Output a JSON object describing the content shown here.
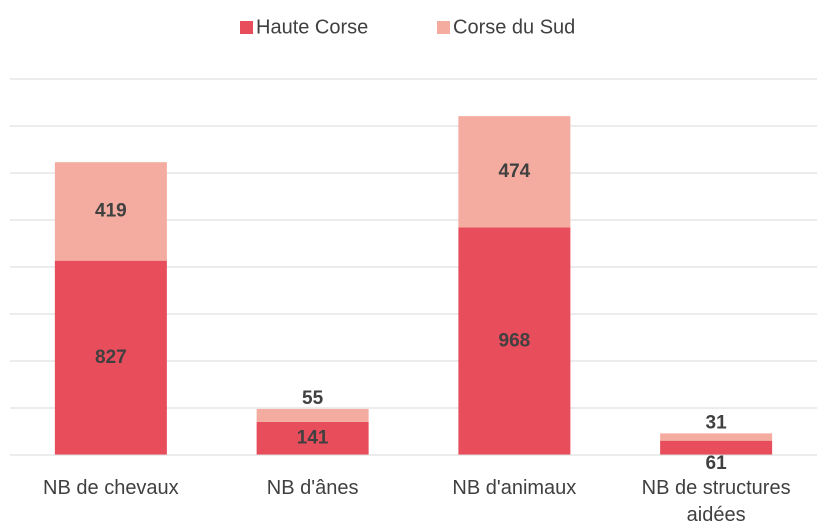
{
  "chart_data": {
    "type": "stacked_bar",
    "categories": [
      "NB de chevaux",
      "NB d'ânes",
      "NB d'animaux",
      "NB de structures aidées"
    ],
    "series": [
      {
        "name": "Haute Corse",
        "color": "#e84d5b",
        "values": [
          827,
          141,
          968,
          61
        ]
      },
      {
        "name": "Corse du Sud",
        "color": "#f4aca0",
        "values": [
          419,
          55,
          474,
          31
        ]
      }
    ],
    "ylim": [
      0,
      1600
    ],
    "yticks": [
      0,
      200,
      400,
      600,
      800,
      1000,
      1200,
      1400,
      1600
    ],
    "ytick_labels": false,
    "grid": true,
    "legend": "top"
  }
}
